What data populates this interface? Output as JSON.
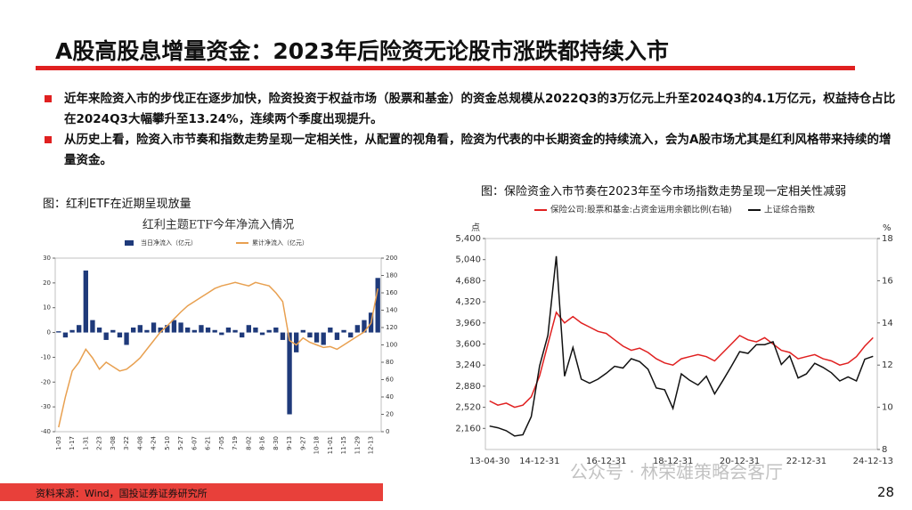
{
  "header": {
    "title": "A股高股息增量资金：2023年后险资无论股市涨跌都持续入市"
  },
  "bullets": [
    "近年来险资入市的步伐正在逐步加快，险资投资于权益市场（股票和基金）的资金总规模从2022Q3的3万亿元上升至2024Q3的4.1万亿元，权益持仓占比在2024Q3大幅攀升至13.24%，连续两个季度出现提升。",
    "从历史上看，险资入市节奏和指数走势呈现一定相关性，从配置的视角看，险资为代表的中长期资金的持续流入，会为A股市场尤其是红利风格带来持续的增量资金。"
  ],
  "footer": {
    "source": "资料来源：Wind，国投证券证券研究所",
    "page": "28",
    "watermark": "公众号 · 林荣雄策略会客厅"
  },
  "chart_data": [
    {
      "type": "bar",
      "caption": "图：红利ETF在近期呈现放量",
      "title": "红利主题ETF今年净流入情况",
      "categories": [
        "1-03",
        null,
        "1-17",
        null,
        "1-31",
        null,
        "2-23",
        null,
        "3-08",
        null,
        "3-22",
        null,
        "4-08",
        null,
        "4-24",
        null,
        "5-10",
        null,
        "5-27",
        null,
        "6-07",
        null,
        "6-21",
        null,
        "7-05",
        null,
        "7-19",
        null,
        "8-02",
        null,
        "8-16",
        null,
        "8-30",
        null,
        "9-13",
        null,
        "9-27",
        null,
        "10-18",
        null,
        "11-01",
        null,
        "11-15",
        null,
        "11-29",
        null,
        "12-13",
        null
      ],
      "series": [
        {
          "name": "当日净流入（亿元）",
          "kind": "bar",
          "color": "#1f3a7a",
          "values": [
            0.5,
            -2,
            1,
            3,
            25,
            5,
            2,
            -3,
            1,
            -2,
            -5,
            2,
            3,
            1,
            4,
            2,
            3,
            5,
            4,
            2,
            1,
            3,
            2,
            1,
            -1,
            2,
            1,
            -2,
            3,
            2,
            -1,
            1,
            2,
            -3,
            -33,
            -8,
            1,
            -2,
            -4,
            -5,
            2,
            -3,
            1,
            -2,
            3,
            5,
            8,
            22
          ]
        },
        {
          "name": "累计净流入（亿元）",
          "kind": "line",
          "axis": "y2",
          "color": "#e8a050",
          "values": [
            5,
            40,
            70,
            80,
            95,
            85,
            72,
            80,
            75,
            70,
            72,
            78,
            85,
            95,
            105,
            115,
            122,
            130,
            138,
            145,
            150,
            155,
            160,
            165,
            168,
            170,
            172,
            170,
            168,
            172,
            170,
            168,
            160,
            150,
            105,
            100,
            108,
            103,
            100,
            97,
            98,
            95,
            100,
            105,
            110,
            115,
            125,
            165
          ]
        }
      ],
      "ylim": [
        -40,
        30
      ],
      "yticks": [
        -40,
        -30,
        -20,
        -10,
        0,
        10,
        20,
        30
      ],
      "y2lim": [
        0,
        200
      ],
      "y2ticks": [
        0,
        20,
        40,
        60,
        80,
        100,
        120,
        140,
        160,
        180,
        200
      ]
    },
    {
      "type": "line",
      "caption": "图：保险资金入市节奏在2023年至今市场指数走势呈现一定相关性减弱",
      "y_label": "点",
      "y2_label": "%",
      "categories": [
        "13-04-30",
        null,
        null,
        null,
        null,
        null,
        "14-12-31",
        null,
        null,
        null,
        null,
        null,
        null,
        null,
        "16-12-31",
        null,
        null,
        null,
        null,
        null,
        null,
        null,
        "18-12-31",
        null,
        null,
        null,
        null,
        null,
        null,
        null,
        "20-12-31",
        null,
        null,
        null,
        null,
        null,
        null,
        null,
        "22-12-31",
        null,
        null,
        null,
        null,
        null,
        null,
        null,
        "24-12-13"
      ],
      "series": [
        {
          "name": "保险公司:股票和基金:占资金运用余额比例(右轴)",
          "kind": "line",
          "axis": "y2",
          "color": "#e02020",
          "values": [
            10.3,
            10.1,
            10.2,
            10.0,
            10.1,
            10.5,
            11.5,
            13.0,
            14.5,
            14.0,
            14.3,
            14.0,
            13.8,
            13.6,
            13.5,
            13.2,
            12.9,
            12.7,
            12.8,
            12.6,
            12.3,
            12.1,
            12.0,
            12.3,
            12.4,
            12.5,
            12.4,
            12.2,
            12.6,
            13.0,
            13.4,
            13.2,
            13.1,
            13.3,
            13.0,
            12.7,
            12.6,
            12.3,
            12.4,
            12.5,
            12.3,
            12.2,
            12.0,
            12.1,
            12.4,
            12.9,
            13.3
          ]
        },
        {
          "name": "上证综合指数",
          "kind": "line",
          "color": "#111111",
          "values": [
            2200,
            2170,
            2120,
            2030,
            2050,
            2360,
            3230,
            3750,
            5100,
            3050,
            3540,
            3000,
            2930,
            3000,
            3100,
            3220,
            3190,
            3350,
            3300,
            3170,
            2850,
            2820,
            2500,
            3090,
            2980,
            2900,
            3050,
            2750,
            2980,
            3220,
            3470,
            3440,
            3590,
            3590,
            3640,
            3250,
            3400,
            3020,
            3090,
            3270,
            3200,
            3110,
            2970,
            3040,
            2970,
            3340,
            3390
          ]
        }
      ],
      "ylim": [
        1800,
        5400
      ],
      "yticks": [
        {
          "value": 2160,
          "label": "2,160"
        },
        {
          "value": 2520,
          "label": "2,520"
        },
        {
          "value": 2880,
          "label": "2,880"
        },
        {
          "value": 3240,
          "label": "3,240"
        },
        {
          "value": 3600,
          "label": "3,600"
        },
        {
          "value": 3960,
          "label": "3,960"
        },
        {
          "value": 4320,
          "label": "4,320"
        },
        {
          "value": 4680,
          "label": "4,680"
        },
        {
          "value": 5040,
          "label": "5,040"
        },
        {
          "value": 5400,
          "label": "5,400"
        }
      ],
      "y2lim": [
        8,
        18
      ],
      "y2ticks": [
        8,
        10,
        12,
        14,
        16,
        18
      ]
    }
  ]
}
